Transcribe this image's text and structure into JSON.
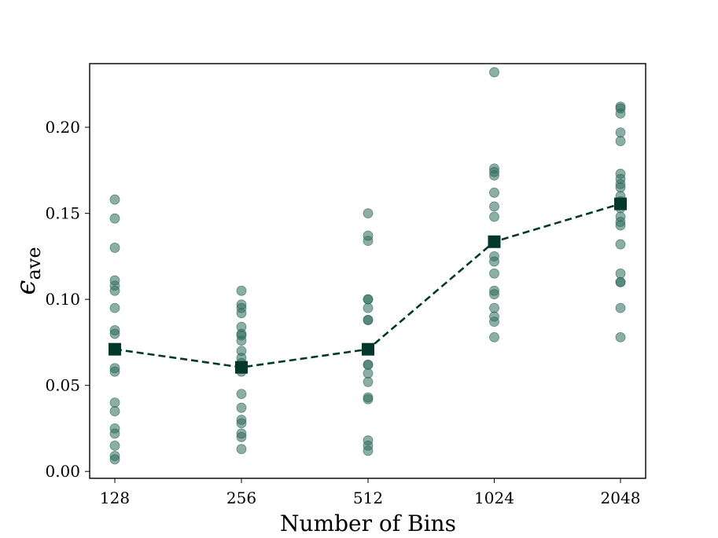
{
  "chart_data": {
    "type": "scatter",
    "title": "",
    "xlabel": "Number of Bins",
    "ylabel": {
      "symbol": "ϵ",
      "subscript": "ave"
    },
    "categories": [
      "128",
      "256",
      "512",
      "1024",
      "2048"
    ],
    "ylim": [
      -0.004,
      0.237
    ],
    "yticks": [
      "0.00",
      "0.05",
      "0.10",
      "0.15",
      "0.20"
    ],
    "grid": false,
    "scatter_series": {
      "color": "#2e6b5a",
      "values": [
        [
          0.158,
          0.147,
          0.13,
          0.111,
          0.108,
          0.105,
          0.095,
          0.082,
          0.08,
          0.06,
          0.058,
          0.04,
          0.035,
          0.025,
          0.022,
          0.015,
          0.009,
          0.007
        ],
        [
          0.105,
          0.097,
          0.095,
          0.092,
          0.084,
          0.08,
          0.079,
          0.076,
          0.07,
          0.066,
          0.063,
          0.058,
          0.045,
          0.037,
          0.03,
          0.028,
          0.022,
          0.02,
          0.013
        ],
        [
          0.15,
          0.137,
          0.134,
          0.1,
          0.1,
          0.095,
          0.088,
          0.088,
          0.062,
          0.062,
          0.057,
          0.052,
          0.043,
          0.042,
          0.018,
          0.015,
          0.012
        ],
        [
          0.232,
          0.176,
          0.174,
          0.172,
          0.162,
          0.154,
          0.148,
          0.125,
          0.122,
          0.115,
          0.105,
          0.103,
          0.095,
          0.09,
          0.087,
          0.078
        ],
        [
          0.212,
          0.211,
          0.208,
          0.197,
          0.192,
          0.173,
          0.17,
          0.167,
          0.165,
          0.16,
          0.157,
          0.153,
          0.148,
          0.145,
          0.143,
          0.132,
          0.115,
          0.11,
          0.11,
          0.095,
          0.078
        ]
      ]
    },
    "mean_series": {
      "color": "#05382c",
      "values": [
        0.071,
        0.0605,
        0.071,
        0.1335,
        0.1555
      ]
    }
  }
}
